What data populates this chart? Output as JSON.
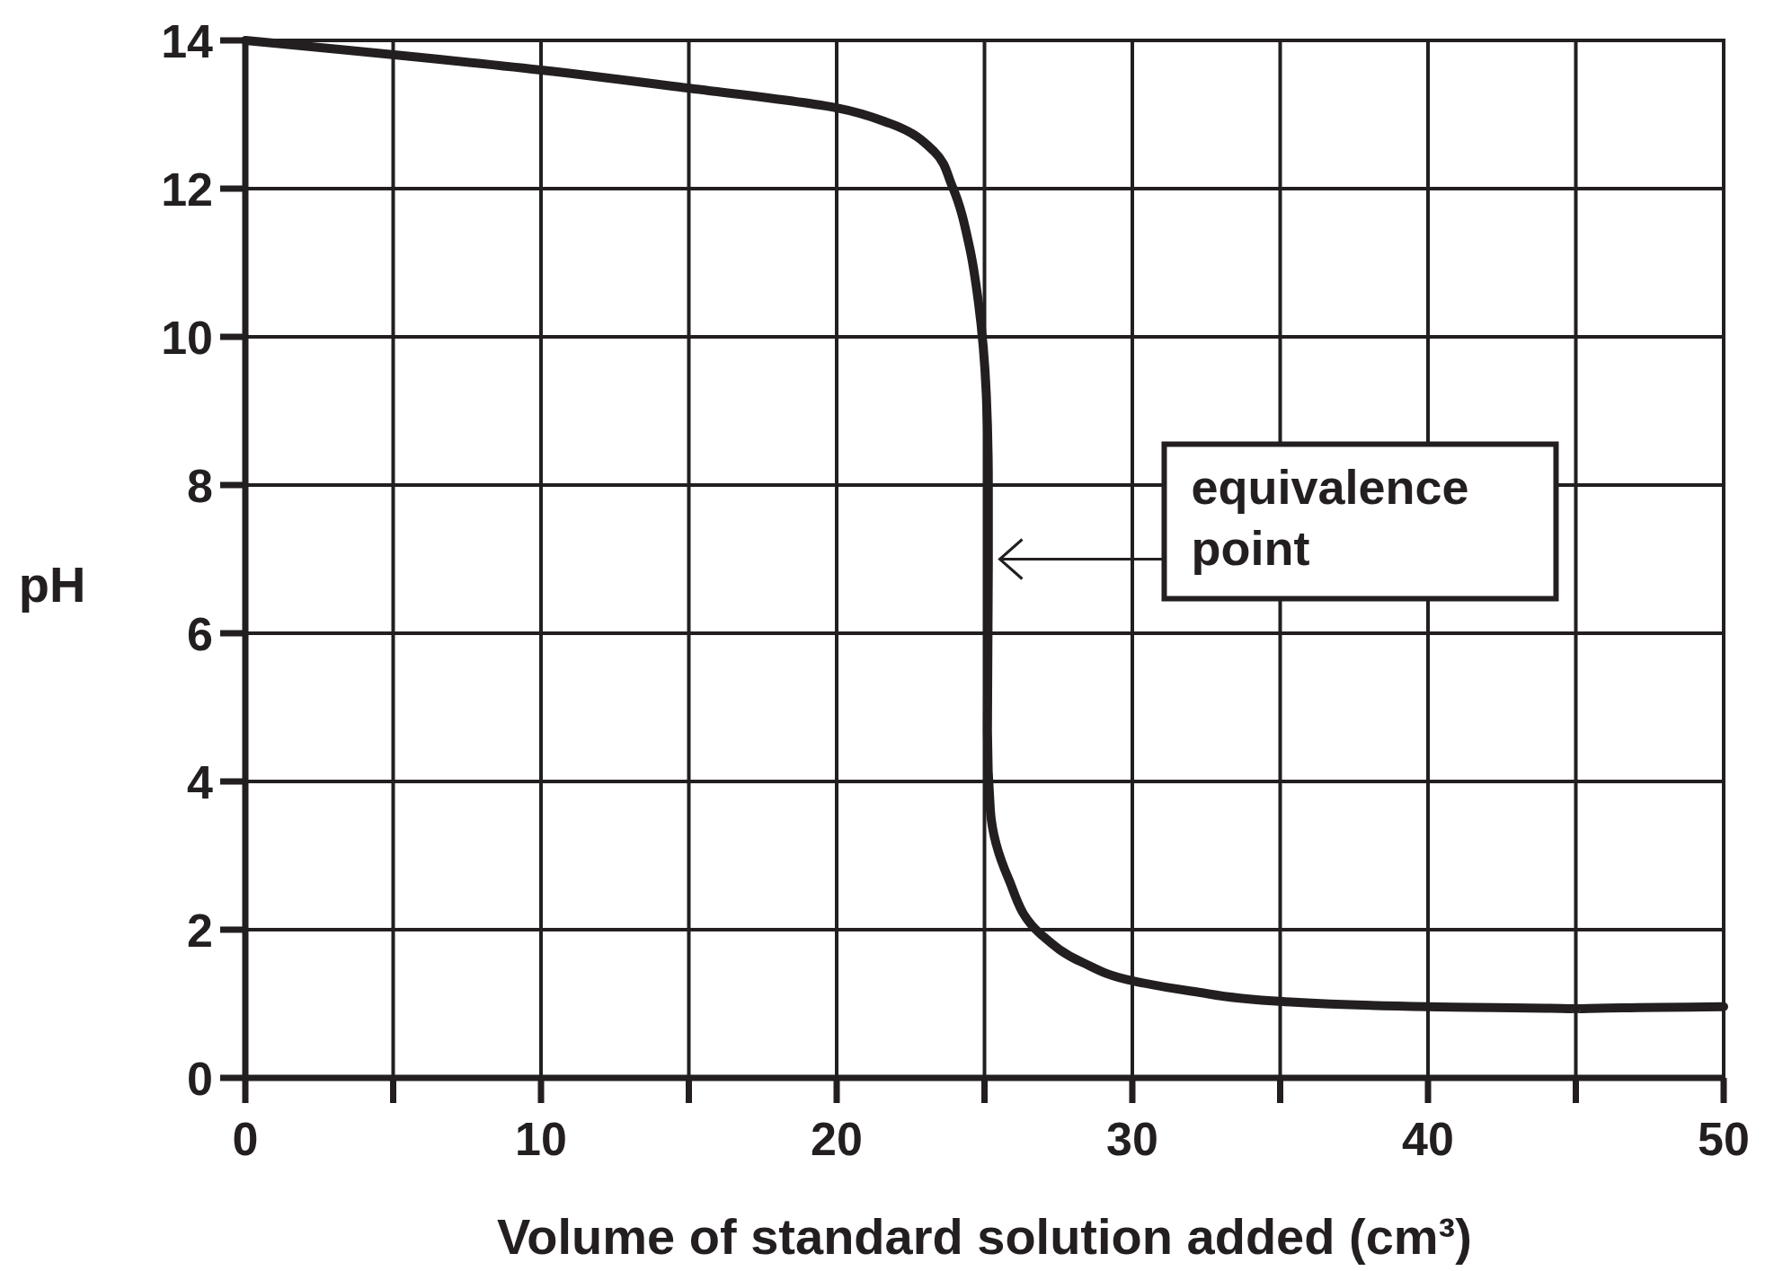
{
  "chart_data": {
    "type": "line",
    "xlabel": "Volume of standard solution added (cm³)",
    "ylabel": "pH",
    "x": [
      0,
      10,
      14.9,
      20,
      21.8,
      23.3,
      23.9,
      24.5,
      24.8,
      25.06,
      25.13,
      25.13,
      25.1,
      25.2,
      25.8,
      26.9,
      28.3,
      30,
      32,
      35.1,
      40,
      45,
      50
    ],
    "series": [
      {
        "color": "#231f20",
        "values": [
          14.0,
          13.6,
          13.36,
          13.09,
          12.88,
          12.5,
          12.04,
          11.2,
          10.45,
          9.23,
          8.0,
          6.95,
          4.68,
          3.6,
          2.7,
          1.94,
          1.56,
          1.31,
          1.17,
          1.03,
          0.96,
          0.93,
          0.96
        ]
      }
    ],
    "xlim": [
      0,
      50
    ],
    "ylim": [
      0,
      14
    ],
    "xticks": [
      0,
      {
        "value": 5,
        "label": null
      },
      10,
      {
        "value": 15,
        "label": null
      },
      20,
      {
        "value": 25,
        "label": null
      },
      30,
      {
        "value": 35,
        "label": null
      },
      40,
      {
        "value": 45,
        "label": null
      },
      50
    ],
    "yticks": [
      0,
      2,
      4,
      6,
      8,
      10,
      12,
      14
    ],
    "grid": true,
    "marker": "none",
    "line_style": "solid",
    "annotations": [
      "equivalence point"
    ]
  }
}
